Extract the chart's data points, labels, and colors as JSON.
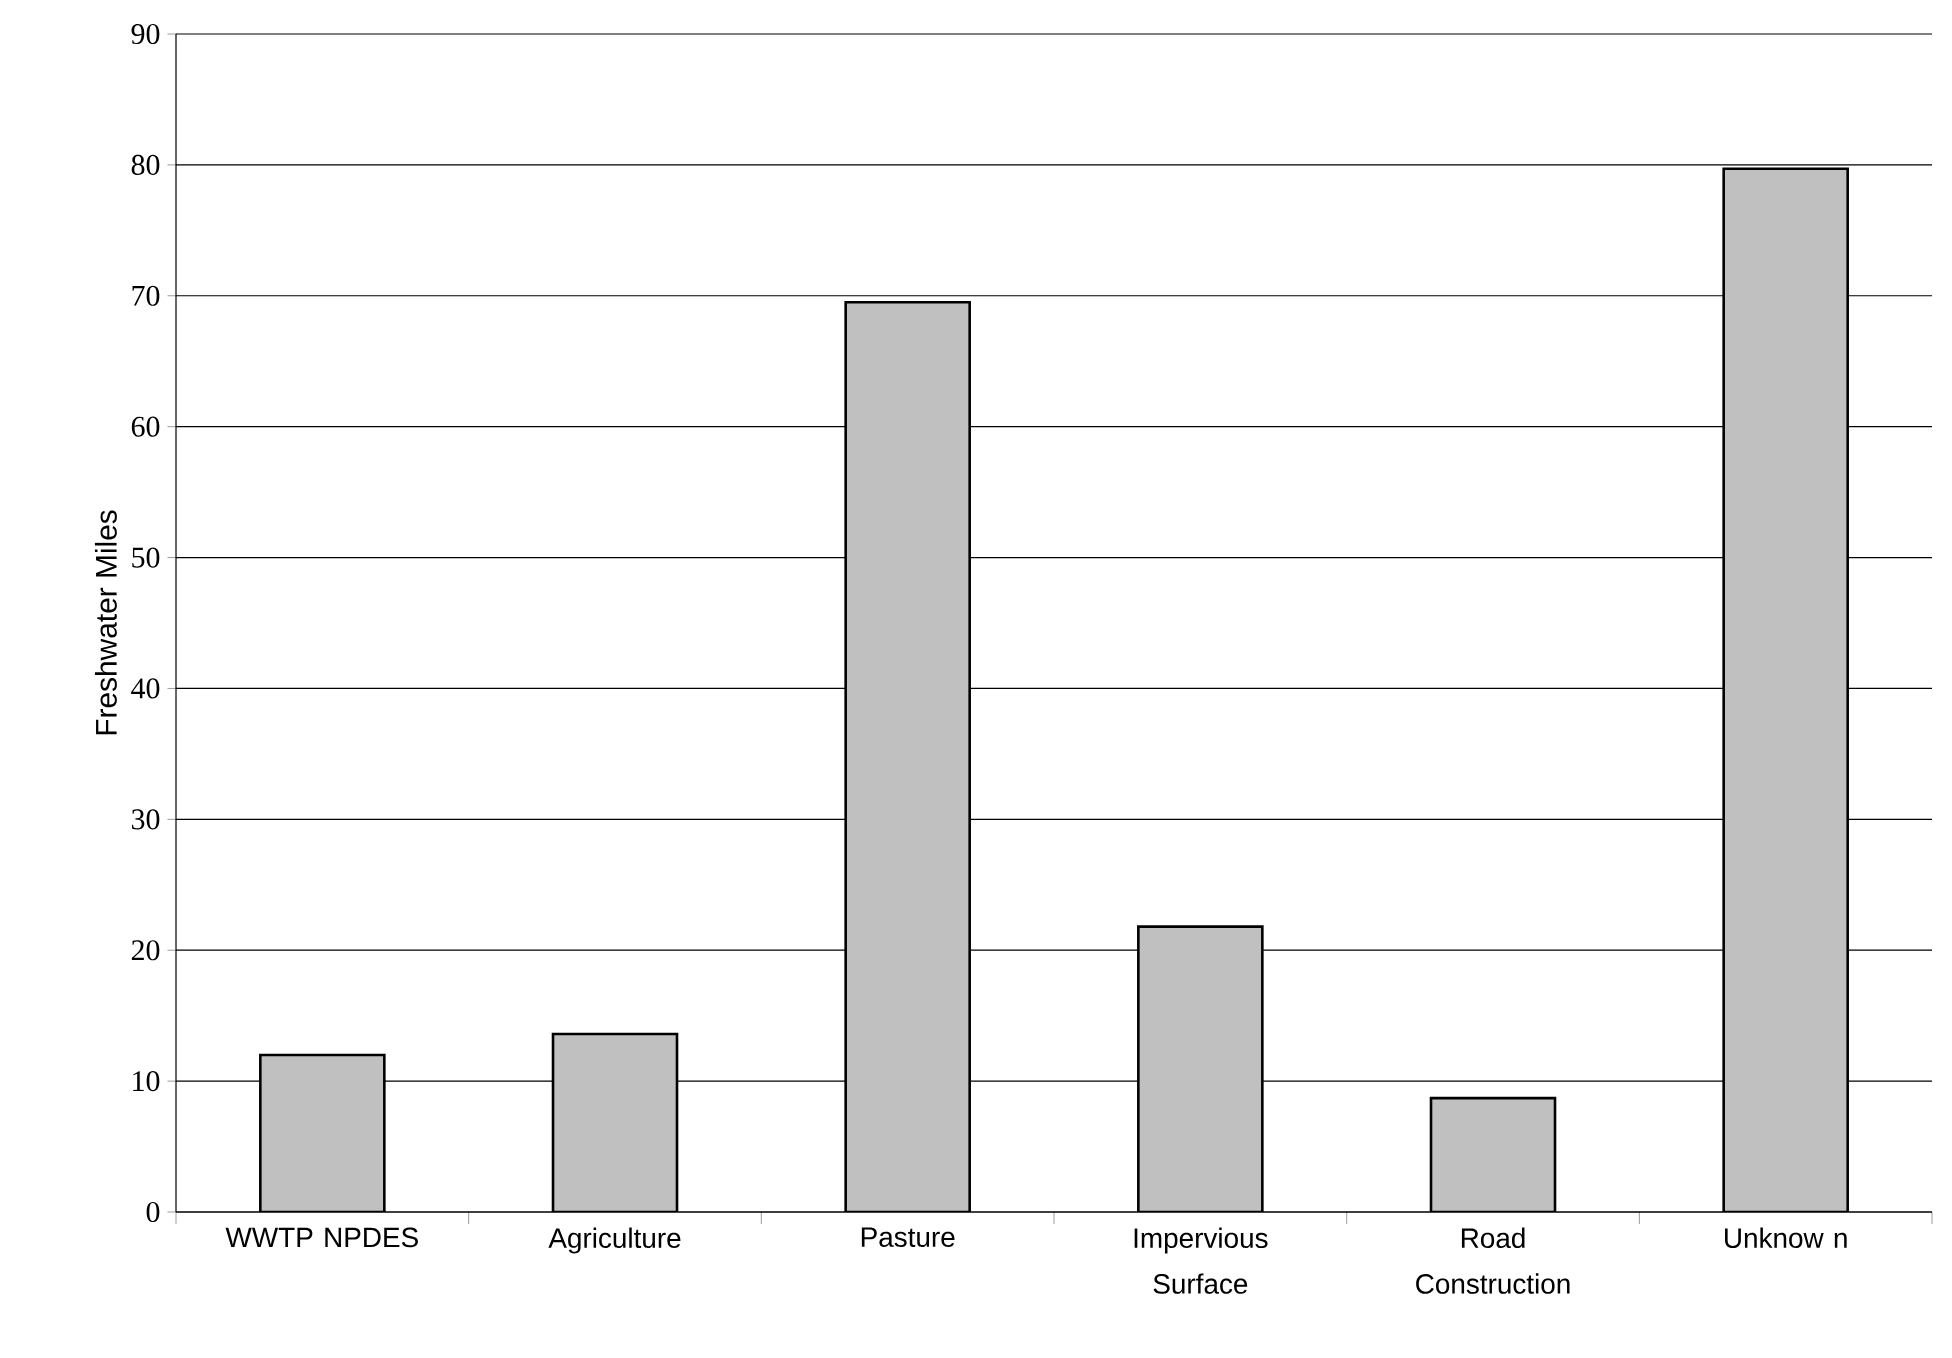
{
  "chart_data": {
    "type": "bar",
    "ylabel": "Freshwater Miles",
    "categories": [
      "WWTP NPDES",
      "Agriculture",
      "Pasture",
      "Impervious Surface",
      "Road Construction",
      "Unknow n"
    ],
    "values": [
      12,
      13.6,
      69.5,
      21.8,
      8.7,
      79.7
    ],
    "color": "#c0c0c0",
    "ylim": [
      0,
      90
    ],
    "yticks": [
      0,
      10,
      20,
      30,
      40,
      50,
      60,
      70,
      80,
      90
    ],
    "grid": "y"
  }
}
